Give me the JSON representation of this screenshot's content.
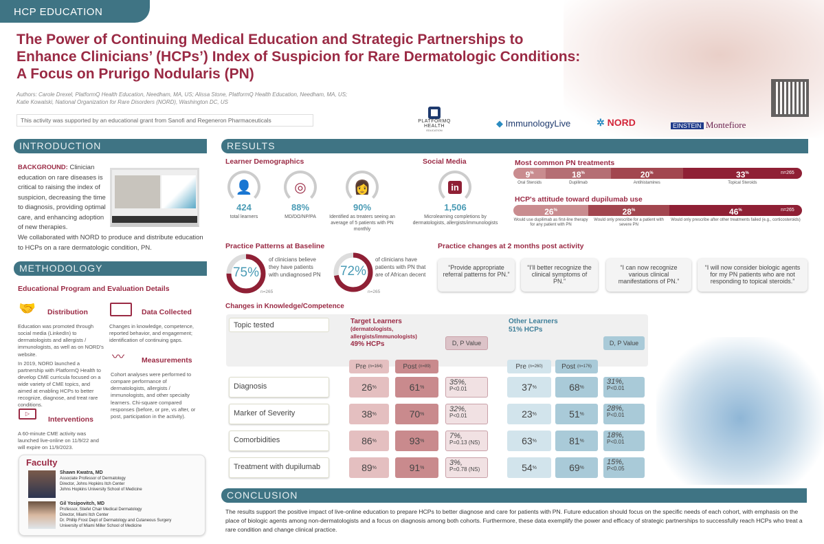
{
  "header": {
    "tab": "HCP EDUCATION",
    "title_lines": [
      "The Power of Continuing Medical Education and Strategic Partnerships to",
      "Enhance Clinicians’ (HCPs’) Index of Suspicion for Rare Dermatologic Conditions:",
      "A Focus on Prurigo Nodularis (PN)"
    ],
    "authors_lines": [
      "Authors: Carole Drexel, PlatformQ Health Education, Needham, MA, US; Alissa Stone, PlatformQ Health Education, Needham, MA, US;",
      "Katie Kowalski, National Organization for Rare Disorders (NORD), Washington DC, US"
    ],
    "grant": "This activity was supported by an educational grant from Sanofi and Regeneron Pharmaceuticals",
    "logos": [
      "PLATFORMQ HEALTH",
      "EDUCATION",
      "ImmunologyLive",
      "NORD",
      "EINSTEIN",
      "Montefiore"
    ]
  },
  "intro": {
    "title": "INTRODUCTION",
    "bg_label": "BACKGROUND:",
    "bg_text": "Clinician education on rare diseases is critical to raising the index of suspicion, decreasing the time to diagnosis, providing optimal care, and enhancing adoption of new therapies.",
    "collab": "We collaborated with NORD to produce and distribute education to HCPs on a rare dermatologic condition, PN."
  },
  "methodology": {
    "title": "METHODOLOGY",
    "subtitle": "Educational Program and Evaluation Details",
    "distribution": {
      "title": "Distribution",
      "p1": "Education was promoted through social media (LinkedIn) to dermatologists and allergists / immunologists, as well as on NORD’s website.",
      "p2": "In 2019, NORD launched a partnership with PlatformQ Health to develop CME curricula focused on a wide variety of CME topics, and aimed at enabling HCPs to better recognize, diagnose, and treat rare conditions."
    },
    "data_collected": {
      "title": "Data Collected",
      "text": "Changes in knowledge, competence, reported behavior, and engagement; identification of continuing gaps."
    },
    "measurements": {
      "title": "Measurements",
      "text": "Cohort analyses were performed to compare performance of dermatologists, allergists / immunologists, and other specialty learners. Chi-square compared responses (before, or pre, vs after, or post, participation in the activity)."
    },
    "interventions": {
      "title": "Interventions",
      "text": "A 60-minute CME activity was launched live-online on 11/9/22 and will expire on 11/9/2023."
    }
  },
  "faculty": {
    "title": "Faculty",
    "members": [
      {
        "name": "Shawn Kwatra, MD",
        "lines": [
          "Associate Professor of Dermatology",
          "Director, Johns Hopkins Itch Center",
          "Johns Hopkins University School of Medicine"
        ]
      },
      {
        "name": "Gil Yosipovitch, MD",
        "lines": [
          "Professor, Stiefel Chair Medical Dermatology",
          "Director, Miami Itch Center",
          "Dr. Phillip Frost Dept of Dermatology and Cutaneous Surgery",
          "University of Miami Miller School of Medicine"
        ]
      }
    ]
  },
  "results": {
    "title": "RESULTS",
    "demographics": {
      "title": "Learner Demographics",
      "stats": [
        {
          "value": "424",
          "label": "total learners"
        },
        {
          "value": "88%",
          "label": "MD/DO/NP/PA"
        },
        {
          "value": "90%",
          "label": "Identified as treaters seeing an average of 5 patients with PN monthly"
        }
      ]
    },
    "social": {
      "title": "Social Media",
      "value": "1,506",
      "label": "Microlearning completions by dermatologists, allergists/immunologists"
    },
    "treatments": {
      "title": "Most common PN treatments",
      "n": "n=265",
      "segments": [
        {
          "value": 9,
          "label": "Oral Steroids",
          "color": "#c98c8f"
        },
        {
          "value": 18,
          "label": "Dupilimab",
          "color": "#b56e74"
        },
        {
          "value": 20,
          "label": "Antihistamines",
          "color": "#a2464f"
        },
        {
          "value": 33,
          "label": "Topical Steroids",
          "color": "#8f2035"
        }
      ]
    },
    "attitude": {
      "title": "HCP's attitude toward dupilumab use",
      "n": "n=265",
      "segments": [
        {
          "value": 26,
          "label": "Would use dupilimab as first-line therapy for any patient with PN",
          "color": "#c98c8f"
        },
        {
          "value": 28,
          "label": "Would only prescribe for a patient with severe PN",
          "color": "#a2464f"
        },
        {
          "value": 46,
          "label": "Would only prescribe after other treatments failed (e.g., corticosteroids)",
          "color": "#8f2035"
        }
      ]
    },
    "baseline": {
      "title": "Practice Patterns at Baseline",
      "items": [
        {
          "value": 75,
          "display": "75%",
          "text": "of clinicians believe they have patients with undiagnosed PN",
          "n": "n=265"
        },
        {
          "value": 72,
          "display": "72%",
          "text": "of clinicians have patients with PN that are of African decent",
          "n": "n=265"
        }
      ]
    },
    "practice_changes": {
      "title": "Practice changes at 2 months post activity",
      "quotes": [
        "“Provide appropriate referral patterns for PN.”",
        "“I’ll better recognize the clinical symptoms of PN.”",
        "“I can now recognize various clinical manifestations of PN.”",
        "“I will now consider biologic agents for my PN patients who are not responding to topical steroids.”"
      ]
    },
    "knowledge": {
      "title": "Changes in Knowledge/Competence",
      "topic_header": "Topic tested",
      "target": {
        "title": "Target Learners",
        "sub": "(dermatologists, allergists/immunologists)",
        "pct": "49% HCPs",
        "pre": "Pre",
        "pre_n": "(n=164)",
        "post": "Post",
        "post_n": "(n=89)",
        "d": "D, P Value"
      },
      "other": {
        "title": "Other Learners",
        "pct": "51% HCPs",
        "pre": "Pre",
        "pre_n": "(n=260)",
        "post": "Post",
        "post_n": "(n=176)",
        "d": "D, P Value"
      },
      "rows": [
        {
          "topic": "Diagnosis",
          "t_pre": "26",
          "t_post": "61",
          "t_d": "35%,",
          "t_p": "P<0.01",
          "o_pre": "37",
          "o_post": "68",
          "o_d": "31%,",
          "o_p": "P<0.01"
        },
        {
          "topic": "Marker of Severity",
          "t_pre": "38",
          "t_post": "70",
          "t_d": "32%,",
          "t_p": "P<0.01",
          "o_pre": "23",
          "o_post": "51",
          "o_d": "28%,",
          "o_p": "P<0.01"
        },
        {
          "topic": "Comorbidities",
          "t_pre": "86",
          "t_post": "93",
          "t_d": "7%,",
          "t_p": "P=0.13 (NS)",
          "o_pre": "63",
          "o_post": "81",
          "o_d": "18%,",
          "o_p": "P<0.01"
        },
        {
          "topic": "Treatment with dupilumab",
          "t_pre": "89",
          "t_post": "91",
          "t_d": "3%,",
          "t_p": "P=0.78 (NS)",
          "o_pre": "54",
          "o_post": "69",
          "o_d": "15%,",
          "o_p": "P<0.05"
        }
      ]
    }
  },
  "conclusion": {
    "title": "CONCLUSION",
    "text": "The results support the positive impact of live-online education to prepare HCPs to better diagnose and care for patients with PN. Future education should focus on the specific needs of each cohort, with emphasis on the place of biologic agents among non-dermatologists and a focus on diagnosis among both cohorts. Furthermore, these data exemplify the power and efficacy of strategic partnerships to successfully reach HCPs who treat a rare condition and change clinical practice."
  }
}
